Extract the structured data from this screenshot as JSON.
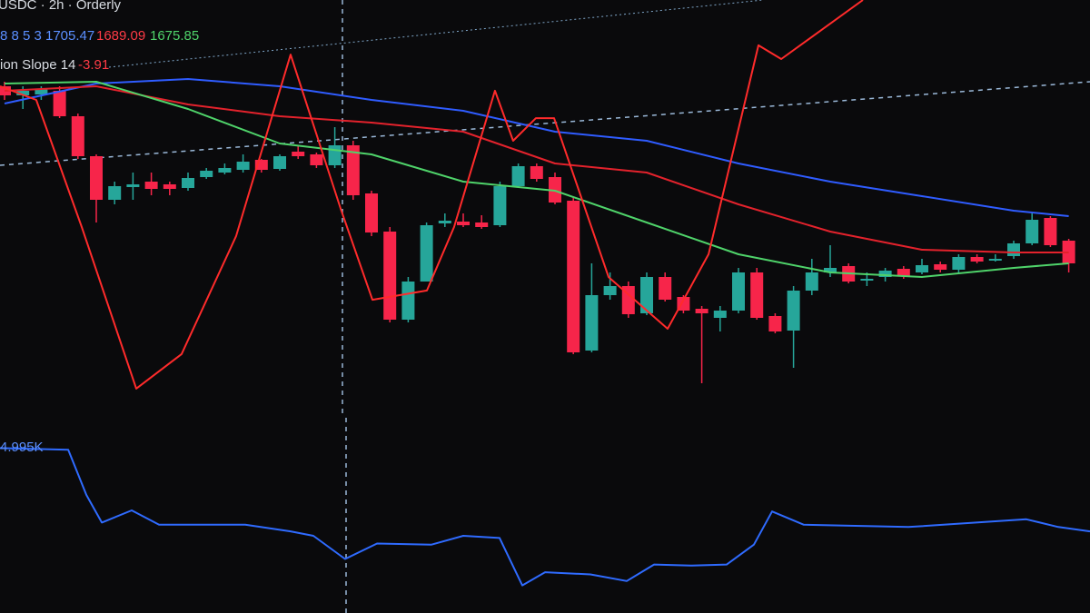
{
  "chart_data": [
    {
      "type": "candlestick",
      "title": "USDC · 2h · Orderly",
      "prefix": "8 8 5 3",
      "legend_values": [
        "1705.47",
        "1689.09",
        "1675.85"
      ],
      "indicator_name": "ion Slope 14",
      "indicator_value": "-3.91",
      "categories": [
        null,
        null,
        null,
        null,
        null,
        null,
        null,
        null,
        null,
        null,
        null,
        null,
        null,
        null,
        null,
        null,
        null,
        null,
        null,
        null,
        null,
        null,
        null,
        null,
        null,
        null,
        null,
        null,
        null,
        null,
        null,
        null,
        null,
        null,
        null,
        null,
        null,
        null,
        null,
        null,
        null,
        null,
        null,
        null,
        null,
        null,
        null,
        null,
        null,
        null,
        null,
        null,
        null,
        null,
        null,
        null,
        null,
        null,
        null
      ],
      "open": [
        1731,
        1729,
        1729.2,
        1730,
        1724.4,
        1715.6,
        1706,
        1708.8,
        1710,
        1709.4,
        1708.6,
        1711,
        1712,
        1712.6,
        1714.8,
        1712.8,
        1716.6,
        1716,
        1713.6,
        1718,
        1707.4,
        1699,
        1679.6,
        1688,
        1700.8,
        1701.2,
        1701,
        1700.4,
        1709,
        1713.4,
        1711,
        1705.8,
        1672.8,
        1685,
        1687,
        1681,
        1689,
        1684.6,
        1682,
        1680,
        1681.6,
        1690,
        1680.4,
        1677.2,
        1686,
        1690,
        1691.4,
        1688.2,
        1689,
        1690.8,
        1690,
        1691.8,
        1690.6,
        1693.4,
        1692.6,
        1693.6,
        1696.4,
        1702,
        1697
      ],
      "high": [
        1732,
        1731,
        1731,
        1731,
        1725,
        1716,
        1710,
        1712,
        1712,
        1710,
        1712,
        1713,
        1714,
        1716,
        1715,
        1716,
        1718,
        1716.4,
        1722,
        1719,
        1708,
        1700,
        1689,
        1701,
        1703,
        1703,
        1702.6,
        1710,
        1714,
        1714,
        1712,
        1706.6,
        1692,
        1690,
        1688,
        1690,
        1690,
        1685,
        1682.6,
        1682.6,
        1691,
        1691,
        1681,
        1687,
        1693,
        1696,
        1692,
        1690,
        1691,
        1691.4,
        1693,
        1692.4,
        1694,
        1694,
        1694,
        1697,
        1703,
        1702.4,
        1697.4
      ],
      "low": [
        1728,
        1726,
        1728,
        1724,
        1715,
        1701,
        1705,
        1706,
        1707,
        1707,
        1708,
        1710.6,
        1711.6,
        1712,
        1712,
        1712.4,
        1715,
        1713,
        1713,
        1706,
        1698,
        1679,
        1679,
        1688,
        1700,
        1700,
        1699.6,
        1700,
        1708.6,
        1710,
        1705,
        1672,
        1672.4,
        1684,
        1680,
        1680.6,
        1683.6,
        1681,
        1665.6,
        1677,
        1681,
        1679.6,
        1676.6,
        1669,
        1685,
        1689,
        1687.6,
        1687,
        1688,
        1688.6,
        1689.6,
        1690,
        1690,
        1692,
        1692.4,
        1693,
        1696,
        1695.6,
        1690
      ],
      "close": [
        1729,
        1730,
        1730.4,
        1724.4,
        1715.6,
        1706,
        1709,
        1709.4,
        1708.4,
        1708.4,
        1710.8,
        1712.4,
        1713,
        1714.4,
        1712.6,
        1715.6,
        1715.6,
        1713.6,
        1718,
        1707,
        1698.8,
        1679.6,
        1688,
        1700.4,
        1701.4,
        1700.4,
        1700,
        1709,
        1713.4,
        1710.6,
        1705.4,
        1672.4,
        1685,
        1687,
        1680.8,
        1689,
        1684,
        1681.6,
        1681,
        1681.6,
        1690,
        1680,
        1677,
        1686,
        1690,
        1691,
        1688,
        1688.6,
        1690.4,
        1689.2,
        1691.6,
        1690.6,
        1693.4,
        1692.4,
        1693,
        1696.4,
        1701.6,
        1696,
        1692
      ],
      "up_color": "#26a69a",
      "down_color": "#f7254a",
      "ylim": [
        1660,
        1750
      ],
      "y2lim": [
        -10,
        10
      ],
      "series": [
        {
          "color": "#2f5cff",
          "x": [
            0,
            5,
            10,
            15,
            20,
            25,
            30,
            35,
            40,
            45,
            50,
            55,
            58
          ],
          "values": [
            1727.2,
            1731.6,
            1732.6,
            1731,
            1728,
            1725.6,
            1721,
            1719,
            1714,
            1710,
            1706.8,
            1703.6,
            1702.4
          ]
        },
        {
          "color": "#e3222c",
          "x": [
            0,
            5,
            10,
            15,
            20,
            25,
            30,
            35,
            40,
            45,
            50,
            55,
            58
          ],
          "values": [
            1730,
            1731,
            1727,
            1724.4,
            1723,
            1721,
            1714,
            1712,
            1705,
            1699,
            1695,
            1694.4,
            1694.4
          ]
        },
        {
          "color": "#4fd36a",
          "x": [
            0,
            5,
            10,
            15,
            20,
            25,
            30,
            35,
            40,
            45,
            50,
            55,
            58
          ],
          "values": [
            1731.6,
            1732,
            1726,
            1718.4,
            1716,
            1710,
            1708,
            1701,
            1694,
            1690,
            1689,
            1691,
            1692
          ]
        },
        {
          "color": "#ff2b2b",
          "axis": "y2",
          "x": [
            -0.25,
            1.73,
            4.21,
            7.18,
            9.65,
            12.62,
            15.59,
            18.32,
            20.05,
            23.02,
            24.5,
            26.73,
            27.72,
            28.96,
            29.95,
            32.92,
            36.14,
            38.37,
            41.09,
            42.33,
            46.78
          ],
          "values": [
            5.78,
            5.11,
            -1.11,
            -9.02,
            -7.33,
            -1.56,
            7.33,
            -0.22,
            -4.67,
            -4.22,
            -1.11,
            5.56,
            3.11,
            4.22,
            4.22,
            -3.56,
            -6.09,
            -2.44,
            7.78,
            7.11,
            10
          ]
        }
      ]
    },
    {
      "type": "line",
      "label": "4.995K",
      "color": "#2f6bff",
      "ylim": [
        3.5,
        5.27
      ],
      "x": [
        -0.25,
        3.47,
        4.46,
        5.3,
        6.93,
        8.42,
        13.12,
        15.59,
        16.83,
        18.56,
        20.3,
        23.27,
        25,
        26.98,
        28.22,
        29.46,
        31.93,
        33.91,
        35.4,
        37.38,
        39.36,
        40.84,
        41.83,
        43.56,
        49.26,
        55.69,
        57.43,
        59.16
      ],
      "values": [
        4.995,
        4.98,
        4.57,
        4.32,
        4.43,
        4.3,
        4.3,
        4.24,
        4.2,
        3.99,
        4.13,
        4.12,
        4.2,
        4.18,
        3.75,
        3.87,
        3.85,
        3.79,
        3.94,
        3.93,
        3.94,
        4.12,
        4.42,
        4.3,
        4.28,
        4.35,
        4.28,
        4.24
      ]
    }
  ]
}
